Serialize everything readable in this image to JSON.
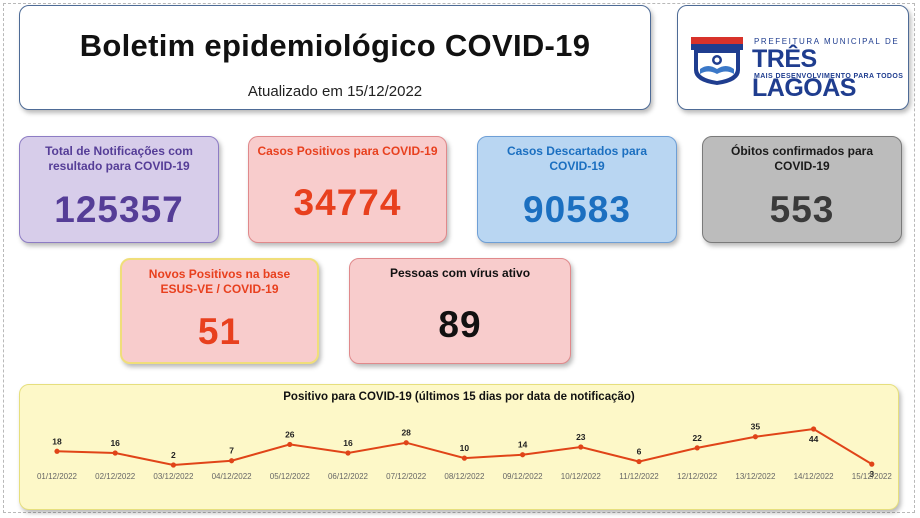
{
  "header": {
    "title": "Boletim epidemiológico COVID-19",
    "updated": "Atualizado em 15/12/2022"
  },
  "logo": {
    "line1": "PREFEITURA MUNICIPAL DE",
    "line2": "TRÊS LAGOAS",
    "line3": "MAIS DESENVOLVIMENTO PARA TODOS"
  },
  "stats": {
    "total": {
      "label": "Total de Notificações com resultado para COVID-19",
      "value": "125357"
    },
    "positivos": {
      "label": "Casos Positivos para COVID-19",
      "value": "34774"
    },
    "descartados": {
      "label": "Casos Descartados para COVID-19",
      "value": "90583"
    },
    "obitos": {
      "label": "Óbitos confirmados para COVID-19",
      "value": "553"
    },
    "novos": {
      "label": "Novos Positivos na base ESUS-VE / COVID-19",
      "value": "51"
    },
    "ativos": {
      "label": "Pessoas com vírus ativo",
      "value": "89"
    }
  },
  "colors": {
    "purple_bg": "#d7cdea",
    "purple_text": "#553d97",
    "red_bg": "#f8cccc",
    "red_text": "#e8401e",
    "blue_bg": "#b9d6f2",
    "blue_text": "#1b6fc0",
    "gray_bg": "#bcbcbc",
    "gray_text": "#3a3a3a",
    "line": "#e04418"
  },
  "chart_data": {
    "type": "line",
    "title": "Positivo para COVID-19 (últimos 15 dias por data de notificação)",
    "categories": [
      "01/12/2022",
      "02/12/2022",
      "03/12/2022",
      "04/12/2022",
      "05/12/2022",
      "06/12/2022",
      "07/12/2022",
      "08/12/2022",
      "09/12/2022",
      "10/12/2022",
      "11/12/2022",
      "12/12/2022",
      "13/12/2022",
      "14/12/2022",
      "15/12/2022"
    ],
    "values": [
      18,
      16,
      2,
      7,
      26,
      16,
      28,
      10,
      14,
      23,
      6,
      22,
      35,
      44,
      3
    ],
    "xlabel": "",
    "ylabel": "",
    "grid": false,
    "legend": "none"
  }
}
